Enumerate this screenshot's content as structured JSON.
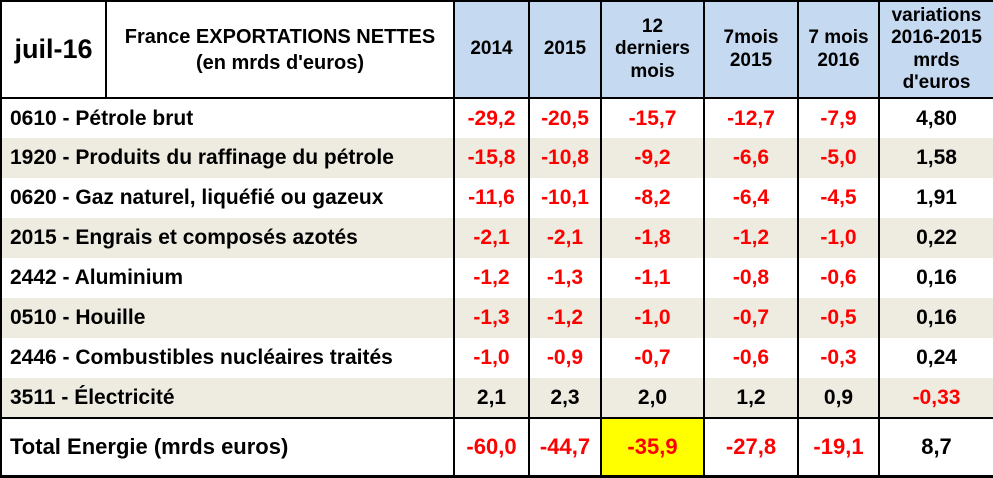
{
  "header": {
    "date_label": "juil-16",
    "title": "France EXPORTATIONS NETTES\n(en mrds d'euros)",
    "columns": [
      "2014",
      "2015",
      "12\nderniers\nmois",
      "7mois\n2015",
      "7 mois\n2016",
      "variations\n2016-2015\nmrds\nd'euros"
    ]
  },
  "rows": [
    {
      "label": "0610 - Pétrole brut",
      "values": [
        "-29,2",
        "-20,5",
        "-15,7",
        "-12,7",
        "-7,9",
        "4,80"
      ]
    },
    {
      "label": "1920 - Produits du raffinage du pétrole",
      "values": [
        "-15,8",
        "-10,8",
        "-9,2",
        "-6,6",
        "-5,0",
        "1,58"
      ]
    },
    {
      "label": "0620 - Gaz naturel, liquéfié ou gazeux",
      "values": [
        "-11,6",
        "-10,1",
        "-8,2",
        "-6,4",
        "-4,5",
        "1,91"
      ]
    },
    {
      "label": "2015 - Engrais et composés azotés",
      "values": [
        "-2,1",
        "-2,1",
        "-1,8",
        "-1,2",
        "-1,0",
        "0,22"
      ]
    },
    {
      "label": "2442 - Aluminium",
      "values": [
        "-1,2",
        "-1,3",
        "-1,1",
        "-0,8",
        "-0,6",
        "0,16"
      ]
    },
    {
      "label": "0510 - Houille",
      "values": [
        "-1,3",
        "-1,2",
        "-1,0",
        "-0,7",
        "-0,5",
        "0,16"
      ]
    },
    {
      "label": "2446 - Combustibles nucléaires traités",
      "values": [
        "-1,0",
        "-0,9",
        "-0,7",
        "-0,6",
        "-0,3",
        "0,24"
      ]
    },
    {
      "label": "3511 - Électricité",
      "values": [
        "2,1",
        "2,3",
        "2,0",
        "1,2",
        "0,9",
        "-0,33"
      ]
    }
  ],
  "total": {
    "label": "Total Energie (mrds euros)",
    "values": [
      "-60,0",
      "-44,7",
      "-35,9",
      "-27,8",
      "-19,1",
      "8,7"
    ],
    "highlight_index": 2
  },
  "colors": {
    "header_bg": "#c5d9f1",
    "stripe_bg": "#eeece1",
    "row_bg": "#ffffff",
    "negative": "#ff0000",
    "text": "#000000",
    "highlight": "#ffff00",
    "border": "#000000"
  }
}
